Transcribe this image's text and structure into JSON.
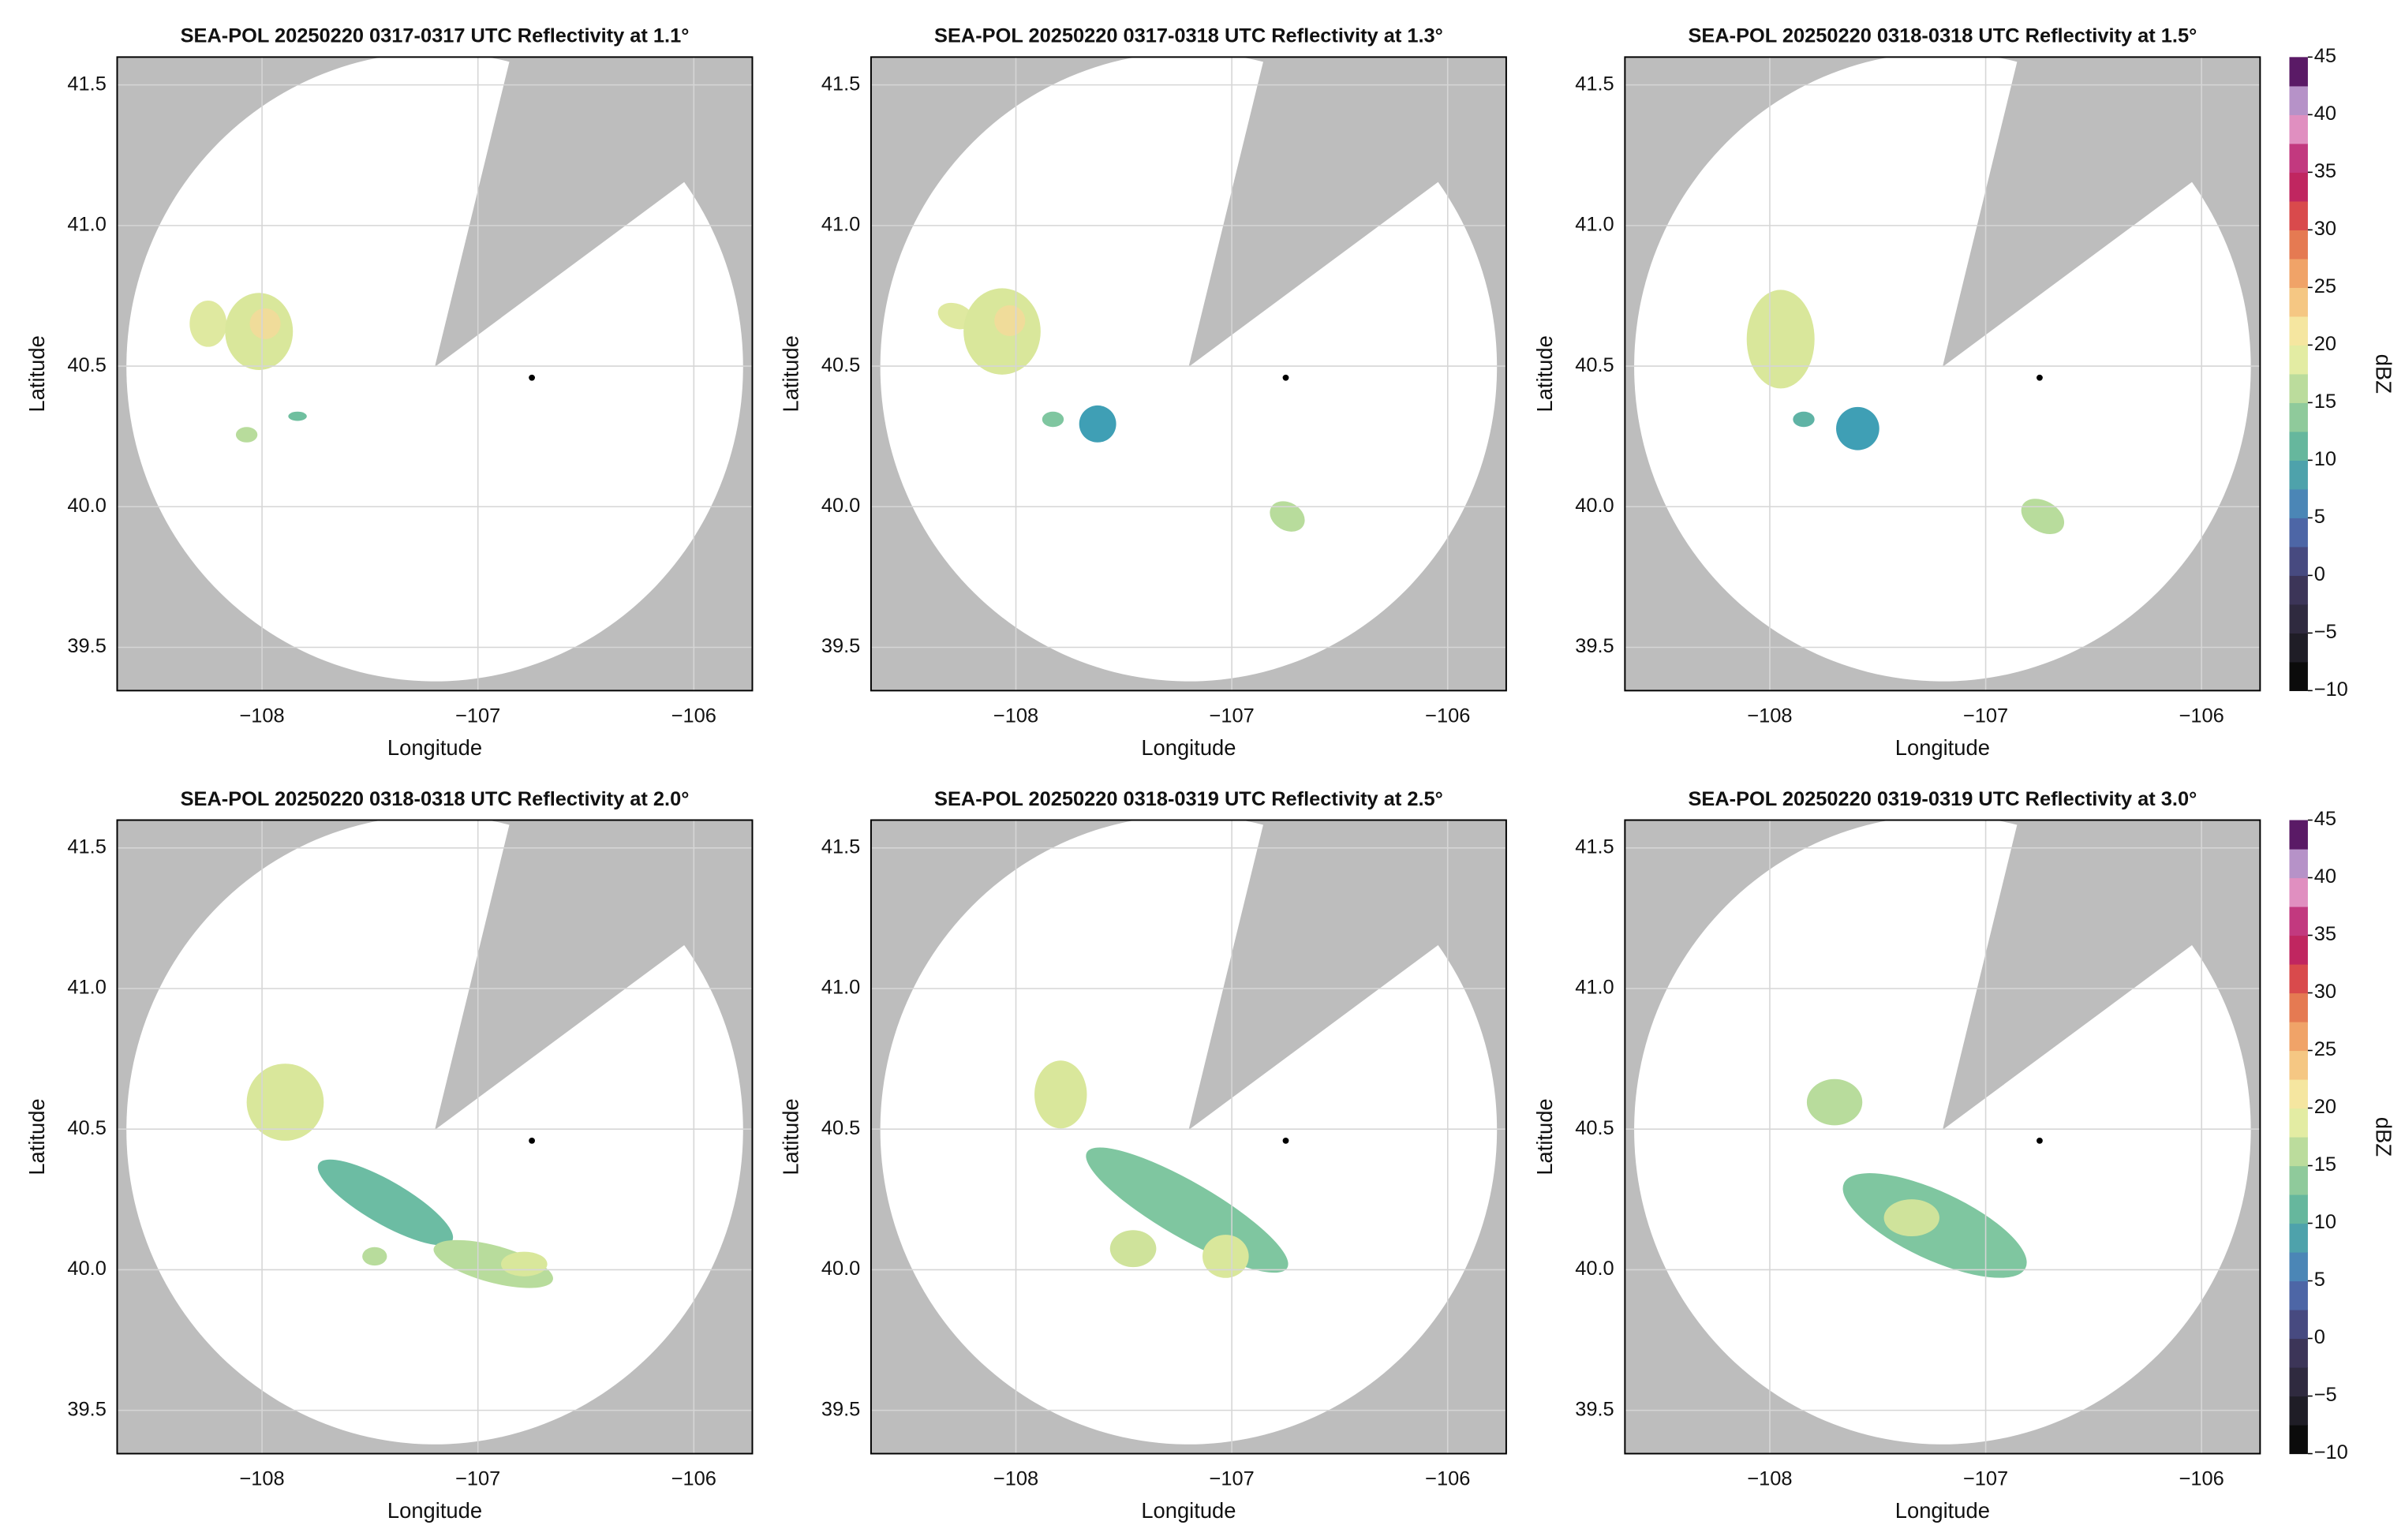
{
  "chart_data": [
    {
      "type": "radar",
      "title": "SEA-POL 20250220 0317-0317 UTC Reflectivity at 1.1°",
      "xlabel": "Longitude",
      "ylabel": "Latitude",
      "xlim": [
        -108.671,
        -105.729
      ],
      "ylim": [
        39.346,
        41.599
      ],
      "xticks": [
        {
          "value": -108,
          "label": "−108"
        },
        {
          "value": -107,
          "label": "−107"
        },
        {
          "value": -106,
          "label": "−106"
        }
      ],
      "yticks": [
        39.5,
        {
          "value": 40,
          "label": "40.0"
        },
        40.5,
        {
          "value": 41,
          "label": "41.0"
        },
        41.5
      ],
      "grid": true
    },
    {
      "type": "radar",
      "title": "SEA-POL 20250220 0317-0318 UTC Reflectivity at 1.3°",
      "xlabel": "Longitude",
      "ylabel": "Latitude",
      "xlim": [
        -108.671,
        -105.729
      ],
      "ylim": [
        39.346,
        41.599
      ],
      "xticks": [
        {
          "value": -108,
          "label": "−108"
        },
        {
          "value": -107,
          "label": "−107"
        },
        {
          "value": -106,
          "label": "−106"
        }
      ],
      "yticks": [
        39.5,
        {
          "value": 40,
          "label": "40.0"
        },
        40.5,
        {
          "value": 41,
          "label": "41.0"
        },
        41.5
      ],
      "grid": true
    },
    {
      "type": "radar",
      "title": "SEA-POL 20250220 0318-0318 UTC Reflectivity at 1.5°",
      "xlabel": "Longitude",
      "ylabel": "Latitude",
      "xlim": [
        -108.671,
        -105.729
      ],
      "ylim": [
        39.346,
        41.599
      ],
      "xticks": [
        {
          "value": -108,
          "label": "−108"
        },
        {
          "value": -107,
          "label": "−107"
        },
        {
          "value": -106,
          "label": "−106"
        }
      ],
      "yticks": [
        39.5,
        {
          "value": 40,
          "label": "40.0"
        },
        40.5,
        {
          "value": 41,
          "label": "41.0"
        },
        41.5
      ],
      "grid": true,
      "colorbar": {
        "label": "dBZ",
        "lim": [
          -10,
          45
        ],
        "ticks": [
          {
            "value": -10,
            "label": "−10"
          },
          {
            "value": -5,
            "label": "−5"
          },
          0,
          5,
          10,
          15,
          20,
          25,
          30,
          35,
          40,
          45
        ],
        "colors": [
          "#0b0b0b",
          "#1f1d26",
          "#2f2a3f",
          "#3c3558",
          "#474a80",
          "#4d66a6",
          "#4b86b6",
          "#4ea2ab",
          "#66b79d",
          "#8fca9b",
          "#bbdc9c",
          "#e3eca3",
          "#f5e6a0",
          "#f5c783",
          "#f0a368",
          "#e57a52",
          "#d94a4c",
          "#c02660",
          "#c2397f",
          "#e08fc0",
          "#b692c8",
          "#5a1a66"
        ]
      }
    },
    {
      "type": "radar",
      "title": "SEA-POL 20250220 0318-0318 UTC Reflectivity at 2.0°",
      "xlabel": "Longitude",
      "ylabel": "Latitude",
      "xlim": [
        -108.671,
        -105.729
      ],
      "ylim": [
        39.346,
        41.599
      ],
      "xticks": [
        {
          "value": -108,
          "label": "−108"
        },
        {
          "value": -107,
          "label": "−107"
        },
        {
          "value": -106,
          "label": "−106"
        }
      ],
      "yticks": [
        39.5,
        {
          "value": 40,
          "label": "40.0"
        },
        40.5,
        {
          "value": 41,
          "label": "41.0"
        },
        41.5
      ],
      "grid": true
    },
    {
      "type": "radar",
      "title": "SEA-POL 20250220 0318-0319 UTC Reflectivity at 2.5°",
      "xlabel": "Longitude",
      "ylabel": "Latitude",
      "xlim": [
        -108.671,
        -105.729
      ],
      "ylim": [
        39.346,
        41.599
      ],
      "xticks": [
        {
          "value": -108,
          "label": "−108"
        },
        {
          "value": -107,
          "label": "−107"
        },
        {
          "value": -106,
          "label": "−106"
        }
      ],
      "yticks": [
        39.5,
        {
          "value": 40,
          "label": "40.0"
        },
        40.5,
        {
          "value": 41,
          "label": "41.0"
        },
        41.5
      ],
      "grid": true
    },
    {
      "type": "radar",
      "title": "SEA-POL 20250220 0319-0319 UTC Reflectivity at 3.0°",
      "xlabel": "Longitude",
      "ylabel": "Latitude",
      "xlim": [
        -108.671,
        -105.729
      ],
      "ylim": [
        39.346,
        41.599
      ],
      "xticks": [
        {
          "value": -108,
          "label": "−108"
        },
        {
          "value": -107,
          "label": "−107"
        },
        {
          "value": -106,
          "label": "−106"
        }
      ],
      "yticks": [
        39.5,
        {
          "value": 40,
          "label": "40.0"
        },
        40.5,
        {
          "value": 41,
          "label": "41.0"
        },
        41.5
      ],
      "grid": true,
      "colorbar": {
        "label": "dBZ",
        "lim": [
          -10,
          45
        ],
        "ticks": [
          {
            "value": -10,
            "label": "−10"
          },
          {
            "value": -5,
            "label": "−5"
          },
          0,
          5,
          10,
          15,
          20,
          25,
          30,
          35,
          40,
          45
        ],
        "colors": [
          "#0b0b0b",
          "#1f1d26",
          "#2f2a3f",
          "#3c3558",
          "#474a80",
          "#4d66a6",
          "#4b86b6",
          "#4ea2ab",
          "#66b79d",
          "#8fca9b",
          "#bbdc9c",
          "#e3eca3",
          "#f5e6a0",
          "#f5c783",
          "#f0a368",
          "#e57a52",
          "#d94a4c",
          "#c02660",
          "#c2397f",
          "#e08fc0",
          "#b692c8",
          "#5a1a66"
        ]
      }
    }
  ]
}
